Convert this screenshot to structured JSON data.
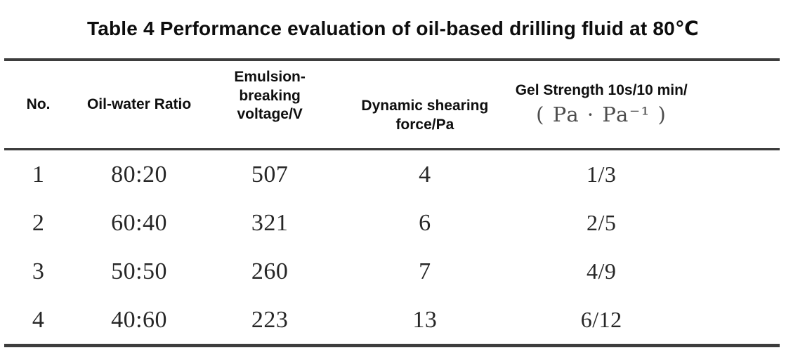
{
  "title": "Table 4 Performance evaluation of oil-based drilling fluid at 80℃",
  "table": {
    "headers": [
      {
        "lines": [
          "No."
        ]
      },
      {
        "lines": [
          "Oil-water Ratio"
        ]
      },
      {
        "lines": [
          "Emulsion-breaking",
          "voltage/V"
        ]
      },
      {
        "lines": [
          "Dynamic shearing",
          "force/Pa"
        ]
      },
      {
        "lines": [
          "Gel Strength 10s/10 min/",
          "( Pa · Pa⁻¹ )"
        ]
      }
    ],
    "rows": [
      [
        "1",
        "80:20",
        "507",
        "4",
        "1/3"
      ],
      [
        "2",
        "60:40",
        "321",
        "6",
        "2/5"
      ],
      [
        "3",
        "50:50",
        "260",
        "7",
        "4/9"
      ],
      [
        "4",
        "40:60",
        "223",
        "13",
        "6/12"
      ]
    ]
  },
  "colors": {
    "background": "#ffffff",
    "rule": "#3d3d3d",
    "header_text": "#0f0f0f",
    "data_text": "#272727",
    "unit_text": "#4d4d4d"
  }
}
